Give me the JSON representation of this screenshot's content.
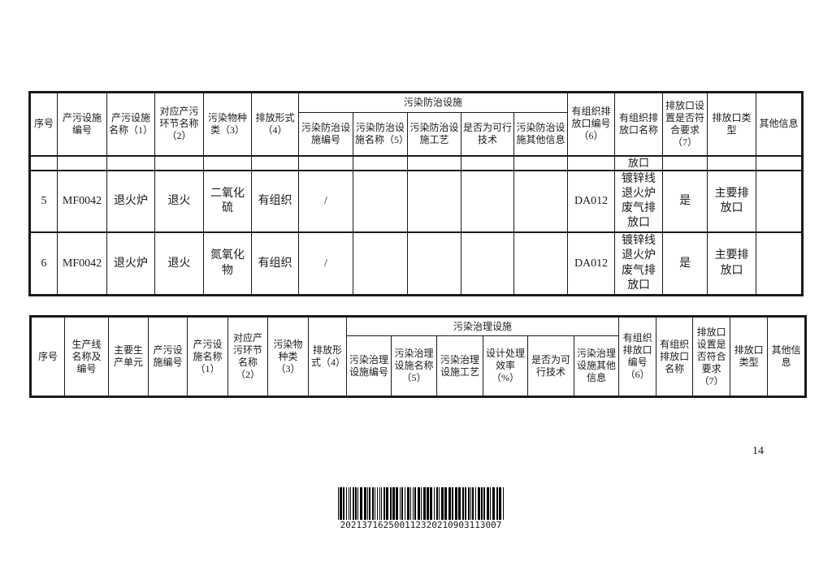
{
  "page": {
    "number": "14",
    "ink_color": "#1a1a1a",
    "background": "#ffffff"
  },
  "table1": {
    "group_header": "污染防治设施",
    "headers": [
      "序号",
      "产污设施编号",
      "产污设施名称（1）",
      "对应产污环节名称（2）",
      "污染物种类（3）",
      "排放形式（4）",
      "污染防治设施编号",
      "污染防治设施名称（5）",
      "污染防治设施工艺",
      "是否为可行技术",
      "污染防治设施其他信息",
      "有组织排放口编号（6）",
      "有组织排放口名称",
      "排放口设置是否符合要求（7）",
      "排放口类型",
      "其他信息"
    ],
    "rows": [
      {
        "cells": [
          "",
          "",
          "",
          "",
          "",
          "",
          "",
          "",
          "",
          "",
          "",
          "",
          "放口",
          "",
          "",
          ""
        ]
      },
      {
        "cells": [
          "5",
          "MF0042",
          "退火炉",
          "退火",
          "二氧化硫",
          "有组织",
          "/",
          "",
          "",
          "",
          "",
          "DA012",
          "镀锌线退火炉废气排放口",
          "是",
          "主要排放口",
          ""
        ]
      },
      {
        "cells": [
          "6",
          "MF0042",
          "退火炉",
          "退火",
          "氮氧化物",
          "有组织",
          "/",
          "",
          "",
          "",
          "",
          "DA012",
          "镀锌线退火炉废气排放口",
          "是",
          "主要排放口",
          ""
        ]
      }
    ]
  },
  "table2": {
    "group_header": "污染治理设施",
    "headers": [
      "序号",
      "生产线名称及编号",
      "主要生产单元",
      "产污设施编号",
      "产污设施名称（1）",
      "对应产污环节名称（2）",
      "污染物种类（3）",
      "排放形式（4）",
      "污染治理设施编号",
      "污染治理设施名称（5）",
      "污染治理设施工艺",
      "设计处理效率（%）",
      "是否为可行技术",
      "污染治理设施其他信息",
      "有组织排放口编号（6）",
      "有组织排放口名称",
      "排放口设置是否符合要求（7）",
      "排放口类型",
      "其他信息"
    ]
  },
  "barcode": {
    "digits": "202137162500112320210903113007"
  }
}
